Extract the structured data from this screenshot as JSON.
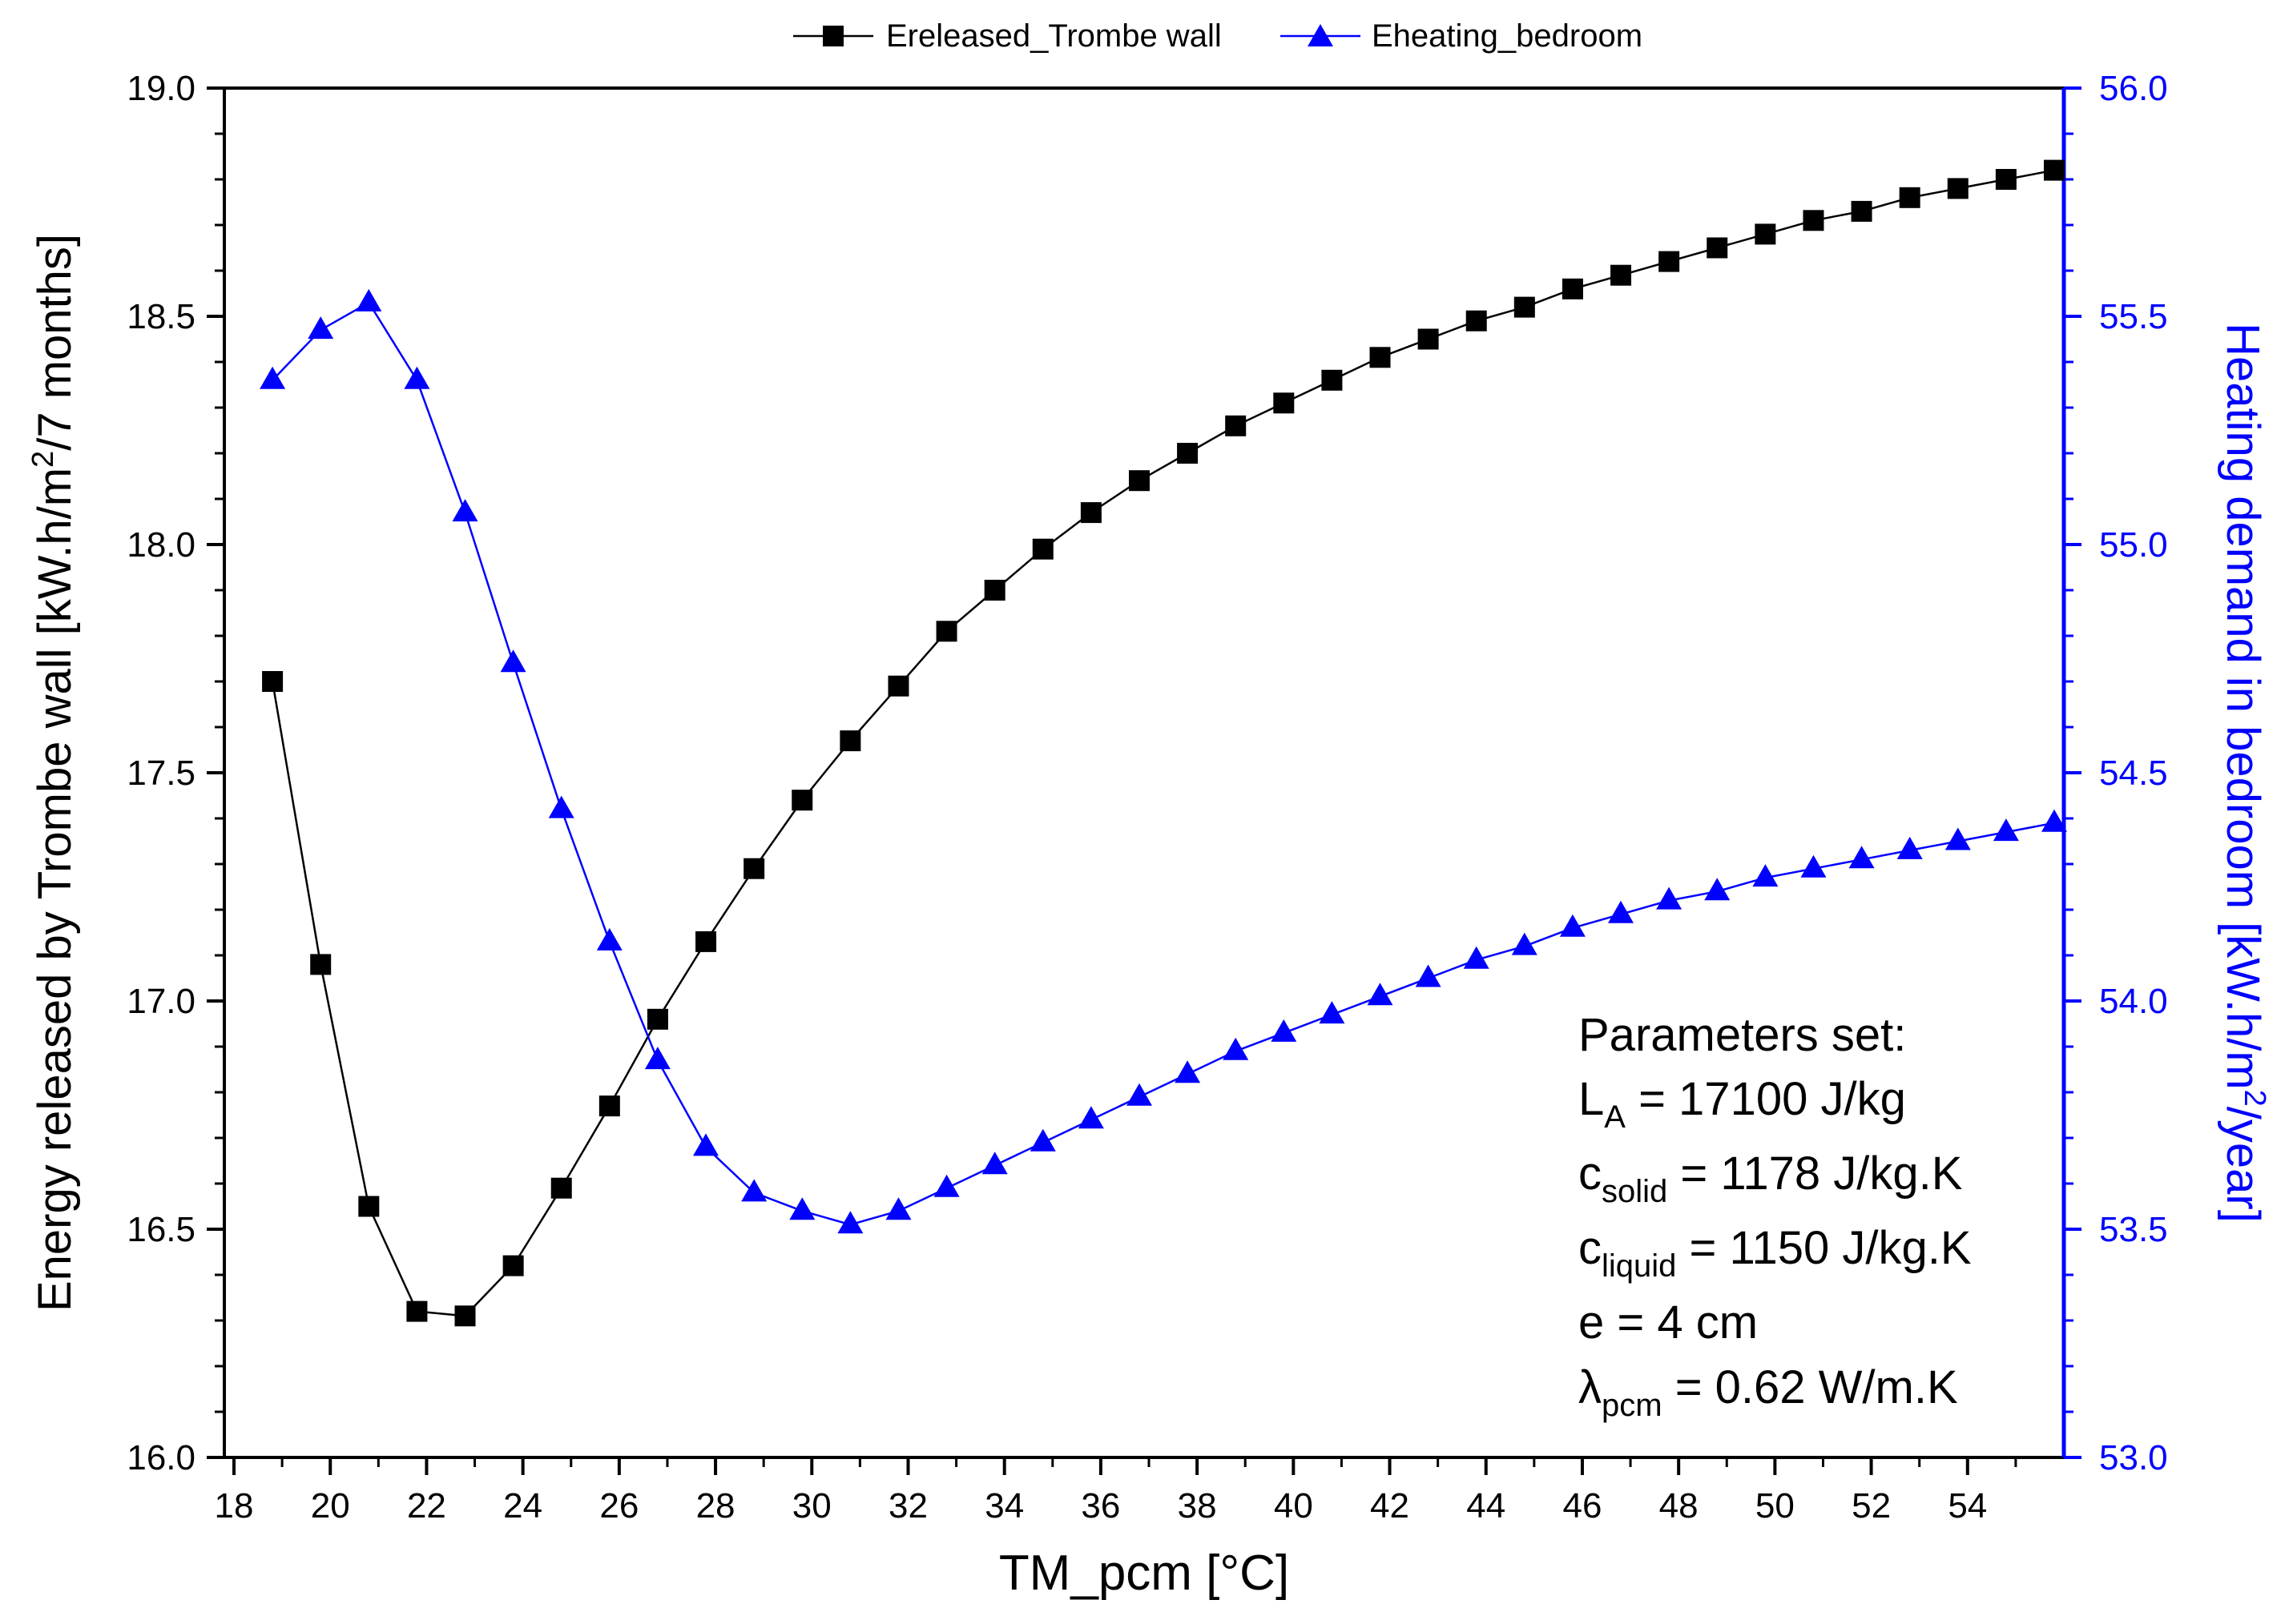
{
  "chart_data": {
    "type": "line",
    "title": "",
    "xlabel": "TM_pcm [°C]",
    "xlim": [
      17.8,
      56.0
    ],
    "x_ticks": [
      18,
      20,
      22,
      24,
      26,
      28,
      30,
      32,
      34,
      36,
      38,
      40,
      42,
      44,
      46,
      48,
      50,
      52,
      54
    ],
    "y_left": {
      "label_main": "Energy released by Trombe wall [kW.h/m",
      "label_sup": "2",
      "label_tail": "/7 months]",
      "ylim": [
        16.0,
        19.0
      ],
      "ticks": [
        "16.0",
        "16.5",
        "17.0",
        "17.5",
        "18.0",
        "18.5",
        "19.0"
      ],
      "color": "#000000"
    },
    "y_right": {
      "label_main": "Heating demand in bedroom [kW.h/m",
      "label_sup": "2",
      "label_tail": "/year]",
      "ylim": [
        53.0,
        56.0
      ],
      "ticks": [
        "53.0",
        "53.5",
        "54.0",
        "54.5",
        "55.0",
        "55.5",
        "56.0"
      ],
      "color": "#0000ff"
    },
    "legend_position": "top-center",
    "grid": false,
    "x": [
      18.8,
      19.8,
      20.8,
      21.8,
      22.8,
      23.8,
      24.8,
      25.8,
      26.8,
      27.8,
      28.8,
      29.8,
      30.8,
      31.8,
      32.8,
      33.8,
      34.8,
      35.8,
      36.8,
      37.8,
      38.8,
      39.8,
      40.8,
      41.8,
      42.8,
      43.8,
      44.8,
      45.8,
      46.8,
      47.8,
      48.8,
      49.8,
      50.8,
      51.8,
      52.8,
      53.8,
      54.8,
      55.8
    ],
    "series": [
      {
        "name": "Ereleased_Trombe wall",
        "axis": "left",
        "marker": "square",
        "color": "#000000",
        "values": [
          17.7,
          17.08,
          16.55,
          16.32,
          16.31,
          16.42,
          16.59,
          16.77,
          16.96,
          17.13,
          17.29,
          17.44,
          17.57,
          17.69,
          17.81,
          17.9,
          17.99,
          18.07,
          18.14,
          18.2,
          18.26,
          18.31,
          18.36,
          18.41,
          18.45,
          18.49,
          18.52,
          18.56,
          18.59,
          18.62,
          18.65,
          18.68,
          18.71,
          18.73,
          18.76,
          18.78,
          18.8,
          18.82
        ]
      },
      {
        "name": "Eheating_bedroom",
        "axis": "right",
        "marker": "triangle",
        "color": "#0000ff",
        "values": [
          55.36,
          55.47,
          55.53,
          55.36,
          55.07,
          54.74,
          54.42,
          54.13,
          53.87,
          53.68,
          53.58,
          53.54,
          53.51,
          53.54,
          53.59,
          53.64,
          53.69,
          53.74,
          53.79,
          53.84,
          53.89,
          53.93,
          53.97,
          54.01,
          54.05,
          54.09,
          54.12,
          54.16,
          54.19,
          54.22,
          54.24,
          54.27,
          54.29,
          54.31,
          54.33,
          54.35,
          54.37,
          54.39
        ]
      }
    ],
    "annotation": {
      "title": "Parameters set:",
      "lines": [
        {
          "sym": "L",
          "sub": "A",
          "text": " = 17100 J/kg"
        },
        {
          "sym": "c",
          "sub": "solid",
          "text": " = 1178 J/kg.K"
        },
        {
          "sym": "c",
          "sub": "liquid",
          "text": " = 1150 J/kg.K"
        },
        {
          "sym": "e",
          "sub": "",
          "text": " = 4 cm"
        },
        {
          "sym": "λ",
          "sub": "pcm",
          "text": " = 0.62 W/m.K"
        }
      ]
    }
  }
}
